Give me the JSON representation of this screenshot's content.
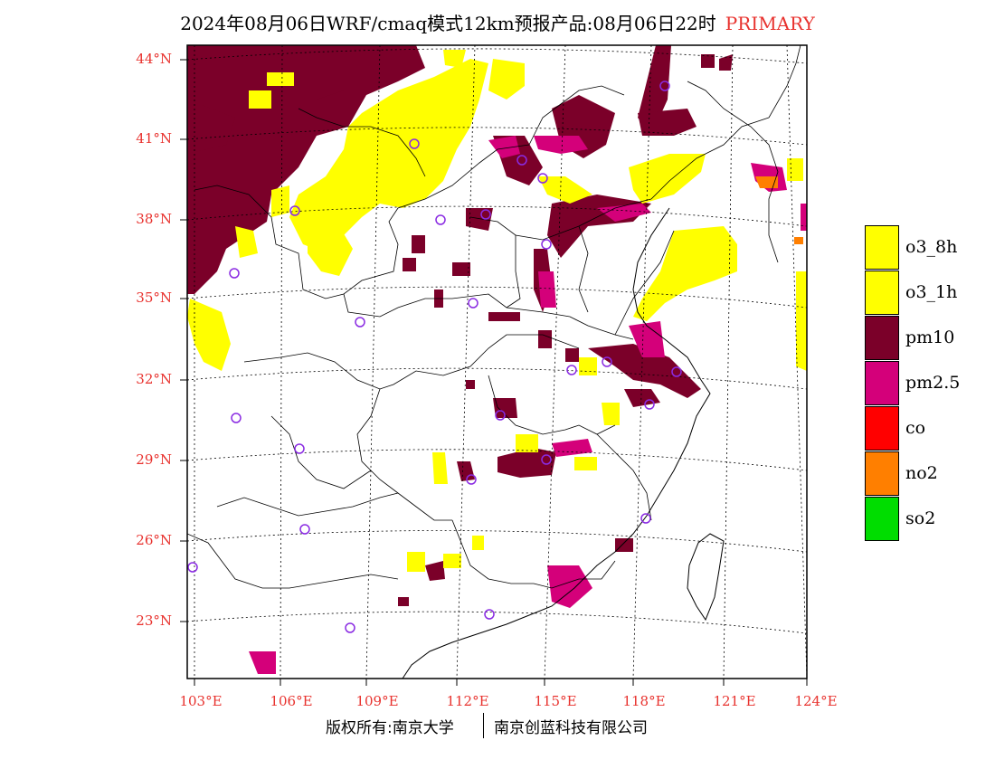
{
  "title": {
    "text": "2024年08月06日WRF/cmaq模式12km预报产品:08月06日22时",
    "tag": "PRIMARY"
  },
  "axes": {
    "lat_labels": [
      "44°N",
      "41°N",
      "38°N",
      "35°N",
      "32°N",
      "29°N",
      "26°N",
      "23°N"
    ],
    "lon_labels": [
      "103°E",
      "106°E",
      "109°E",
      "112°E",
      "115°E",
      "118°E",
      "121°E",
      "124°E"
    ]
  },
  "legend": {
    "items": [
      {
        "label": "o3_8h",
        "color": "#ffff00"
      },
      {
        "label": "o3_1h",
        "color": "#ffff00"
      },
      {
        "label": "pm10",
        "color": "#7b0029"
      },
      {
        "label": "pm2.5",
        "color": "#d4007a"
      },
      {
        "label": "co",
        "color": "#ff0000"
      },
      {
        "label": "no2",
        "color": "#ff7f00"
      },
      {
        "label": "so2",
        "color": "#00dd00"
      }
    ]
  },
  "footer": {
    "copyright": "版权所有:南京大学",
    "company": "南京创蓝科技有限公司"
  },
  "colors": {
    "axis_label": "#e8322e",
    "station_marker": "#8a2be2"
  }
}
